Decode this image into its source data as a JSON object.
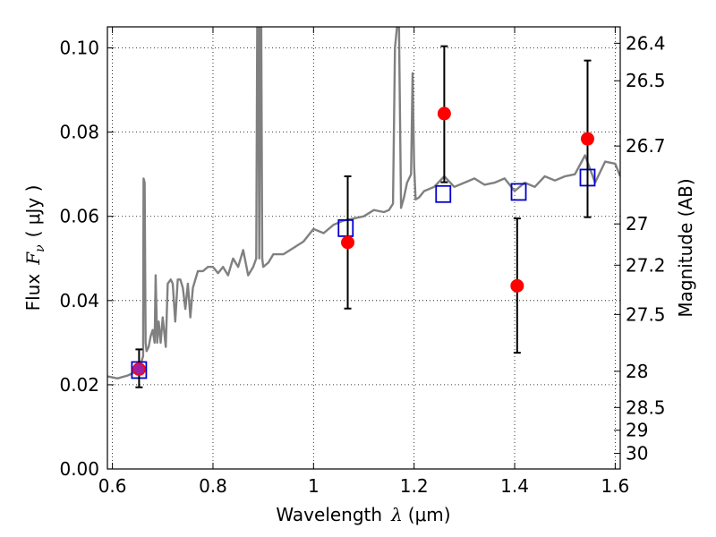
{
  "chart_data": {
    "type": "scatter",
    "xlabel": {
      "prefix": "Wavelength",
      "symbol": "λ",
      "unit": "(μm)"
    },
    "ylabel": {
      "prefix": "Flux",
      "symbol": "F",
      "subscript": "ν",
      "unit": "( μJy )"
    },
    "y2label": "Magnitude (AB)",
    "xlim": [
      0.59,
      1.61
    ],
    "ylim": [
      0.0,
      0.105
    ],
    "grid": true,
    "x_ticks": [
      0.6,
      0.8,
      1.0,
      1.2,
      1.4,
      1.6
    ],
    "x_tick_labels": [
      "0.6",
      "0.8",
      "1",
      "1.2",
      "1.4",
      "1.6"
    ],
    "y_ticks": [
      0.0,
      0.02,
      0.04,
      0.06,
      0.08,
      0.1
    ],
    "y_tick_labels": [
      "0.00",
      "0.02",
      "0.04",
      "0.06",
      "0.08",
      "0.10"
    ],
    "y2_ticks": [
      {
        "label": "26.4",
        "flux": 0.1011
      },
      {
        "label": "26.5",
        "flux": 0.0922
      },
      {
        "label": "26.7",
        "flux": 0.0767
      },
      {
        "label": "27",
        "flux": 0.0582
      },
      {
        "label": "27.2",
        "flux": 0.0484
      },
      {
        "label": "27.5",
        "flux": 0.0367
      },
      {
        "label": "28",
        "flux": 0.0232
      },
      {
        "label": "28.5",
        "flux": 0.0146
      },
      {
        "label": "29",
        "flux": 0.0092
      },
      {
        "label": "30",
        "flux": 0.0037
      }
    ],
    "series": [
      {
        "kind": "line",
        "color": "#808080",
        "x": [
          0.59,
          0.61,
          0.63,
          0.645,
          0.652,
          0.658,
          0.661,
          0.662,
          0.664,
          0.666,
          0.668,
          0.672,
          0.676,
          0.68,
          0.684,
          0.686,
          0.689,
          0.692,
          0.696,
          0.7,
          0.706,
          0.71,
          0.716,
          0.72,
          0.725,
          0.73,
          0.735,
          0.74,
          0.745,
          0.75,
          0.755,
          0.76,
          0.77,
          0.78,
          0.79,
          0.8,
          0.81,
          0.82,
          0.83,
          0.84,
          0.85,
          0.86,
          0.87,
          0.88,
          0.886,
          0.888,
          0.89,
          0.892,
          0.894,
          0.896,
          0.898,
          0.9,
          0.91,
          0.92,
          0.94,
          0.96,
          0.98,
          1.0,
          1.02,
          1.04,
          1.06,
          1.08,
          1.1,
          1.12,
          1.14,
          1.15,
          1.158,
          1.162,
          1.166,
          1.17,
          1.174,
          1.18,
          1.186,
          1.19,
          1.194,
          1.197,
          1.2,
          1.203,
          1.21,
          1.22,
          1.24,
          1.26,
          1.28,
          1.3,
          1.32,
          1.34,
          1.36,
          1.38,
          1.4,
          1.42,
          1.44,
          1.46,
          1.48,
          1.5,
          1.52,
          1.54,
          1.56,
          1.58,
          1.6,
          1.61
        ],
        "y": [
          0.022,
          0.0215,
          0.0222,
          0.023,
          0.0245,
          0.0256,
          0.0268,
          0.069,
          0.068,
          0.03,
          0.028,
          0.029,
          0.0315,
          0.033,
          0.03,
          0.046,
          0.03,
          0.035,
          0.03,
          0.036,
          0.029,
          0.044,
          0.045,
          0.044,
          0.035,
          0.045,
          0.045,
          0.043,
          0.038,
          0.044,
          0.036,
          0.043,
          0.047,
          0.047,
          0.048,
          0.048,
          0.0465,
          0.048,
          0.046,
          0.05,
          0.048,
          0.052,
          0.046,
          0.048,
          0.05,
          0.105,
          0.105,
          0.05,
          0.105,
          0.105,
          0.05,
          0.048,
          0.049,
          0.051,
          0.051,
          0.0525,
          0.054,
          0.057,
          0.056,
          0.058,
          0.059,
          0.0595,
          0.06,
          0.0615,
          0.061,
          0.0615,
          0.063,
          0.1,
          0.105,
          0.105,
          0.062,
          0.0645,
          0.068,
          0.069,
          0.07,
          0.094,
          0.072,
          0.064,
          0.0645,
          0.066,
          0.067,
          0.0695,
          0.067,
          0.068,
          0.069,
          0.0675,
          0.068,
          0.069,
          0.066,
          0.068,
          0.067,
          0.0695,
          0.0685,
          0.0695,
          0.07,
          0.0745,
          0.068,
          0.073,
          0.0725,
          0.0695
        ]
      },
      {
        "kind": "markers",
        "marker": "square-open",
        "color": "#0000cc",
        "x": [
          0.653,
          1.064,
          1.258,
          1.408,
          1.545
        ],
        "y": [
          0.0235,
          0.0572,
          0.0653,
          0.0658,
          0.0692
        ]
      },
      {
        "kind": "errorbar",
        "marker": "circle-filled",
        "color": "#ff0000",
        "ecolor": "#000000",
        "x": [
          0.653,
          1.068,
          1.26,
          1.405,
          1.545
        ],
        "y": [
          0.0237,
          0.0538,
          0.0844,
          0.0435,
          0.0784
        ],
        "yerr_low": [
          0.0043,
          0.0157,
          0.0163,
          0.0159,
          0.0186
        ],
        "yerr_high": [
          0.0047,
          0.0157,
          0.016,
          0.016,
          0.0186
        ]
      },
      {
        "kind": "markers",
        "marker": "circle-filled-small",
        "color": "#a020a0",
        "x": [
          0.653
        ],
        "y": [
          0.0237
        ]
      }
    ]
  }
}
